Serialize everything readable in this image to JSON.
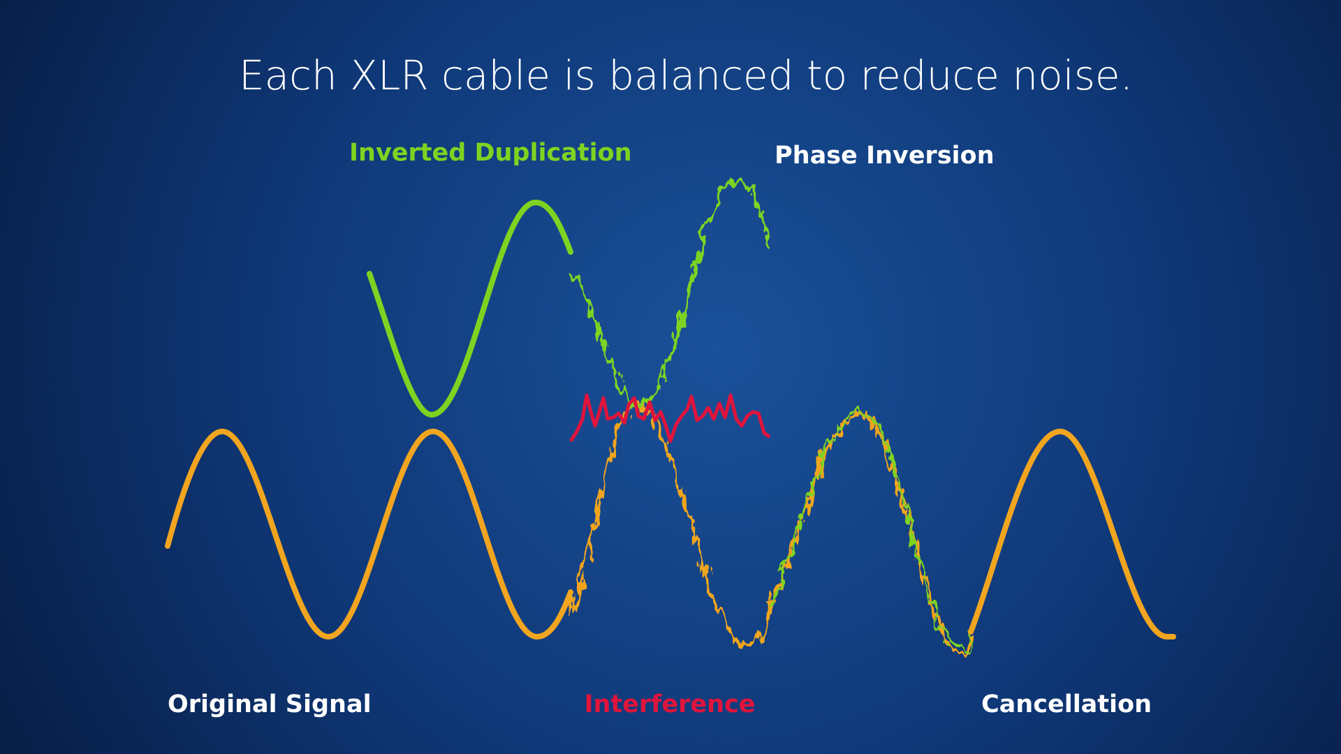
{
  "title": "Each XLR cable is balanced to reduce noise.",
  "labels": {
    "inverted_duplication": "Inverted Duplication",
    "phase_inversion": "Phase Inversion",
    "original_signal": "Original Signal",
    "interference": "Interference",
    "cancellation": "Cancellation"
  }
}
